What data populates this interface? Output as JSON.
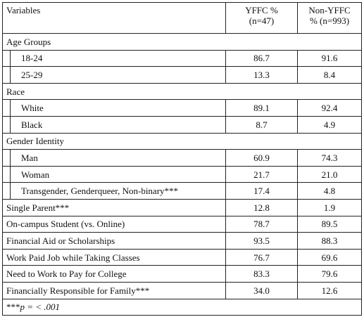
{
  "table": {
    "header": {
      "variables": "Variables",
      "yffc": [
        "YFFC %",
        "(n=47)"
      ],
      "non_yffc": [
        "Non-YFFC",
        "% (n=993)"
      ]
    },
    "rows": [
      {
        "section": "Age Groups",
        "items": [
          {
            "label": "18-24",
            "values": [
              "86.7",
              "91.6"
            ]
          },
          {
            "label": "25-29",
            "values": [
              "13.3",
              "8.4"
            ]
          }
        ]
      },
      {
        "section": "Race",
        "items": [
          {
            "label": "White",
            "values": [
              "89.1",
              "92.4"
            ]
          },
          {
            "label": "Black",
            "values": [
              "8.7",
              "4.9"
            ]
          }
        ]
      },
      {
        "section": "Gender Identity",
        "items": [
          {
            "label": "Man",
            "values": [
              "60.9",
              "74.3"
            ]
          },
          {
            "label": "Woman",
            "values": [
              "21.7",
              "21.0"
            ]
          },
          {
            "label": "Transgender, Genderqueer, Non-binary***",
            "values": [
              "17.4",
              "4.8"
            ]
          }
        ]
      },
      {
        "label": "Single Parent***",
        "values": [
          "12.8",
          "1.9"
        ]
      },
      {
        "label": "On-campus Student (vs. Online)",
        "values": [
          "78.7",
          "89.5"
        ]
      },
      {
        "label": "Financial Aid or Scholarships",
        "values": [
          "93.5",
          "88.3"
        ]
      },
      {
        "label": "Work Paid Job while Taking Classes",
        "values": [
          "76.7",
          "69.6"
        ]
      },
      {
        "label": "Need to Work to Pay for College",
        "values": [
          "83.3",
          "79.6"
        ]
      },
      {
        "label": "Financially Responsible for Family***",
        "values": [
          "34.0",
          "12.6"
        ]
      }
    ],
    "footnote": {
      "marker": "***",
      "text": "p = < .001"
    }
  }
}
